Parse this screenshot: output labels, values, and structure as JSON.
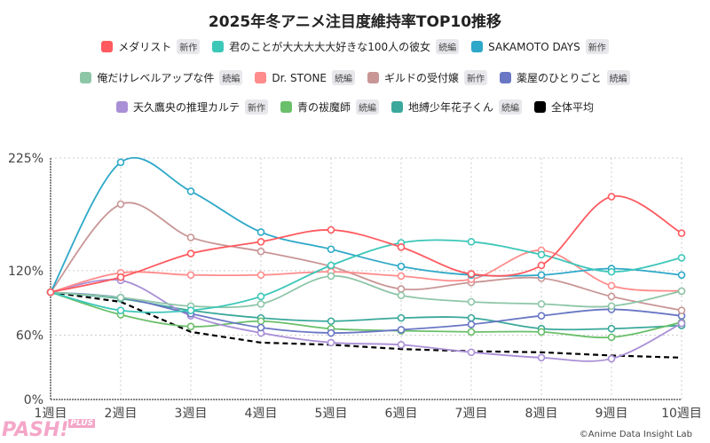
{
  "chart_data": {
    "type": "line",
    "title": "2025年冬アニメ注目度維持率TOP10推移",
    "categories": [
      "1週目",
      "2週目",
      "3週目",
      "4週目",
      "5週目",
      "6週目",
      "7週目",
      "8週目",
      "9週目",
      "10週目"
    ],
    "yticks": [
      "0%",
      "60%",
      "120%",
      "225%"
    ],
    "ytick_values": [
      0,
      60,
      120,
      225
    ],
    "ylim": [
      0,
      225
    ],
    "grid": true,
    "legend_position": "top",
    "series": [
      {
        "name": "メダリスト",
        "badge": "新作",
        "color": "#ff5a5f",
        "values": [
          100,
          114,
          136,
          147,
          158,
          142,
          117,
          125,
          189,
          155
        ]
      },
      {
        "name": "君のことが大大大大大好きな100人の彼女",
        "badge": "続編",
        "color": "#3cc7b9",
        "values": [
          100,
          83,
          83,
          96,
          125,
          146,
          147,
          135,
          119,
          132
        ]
      },
      {
        "name": "SAKAMOTO DAYS",
        "badge": "新作",
        "color": "#2ea8c8",
        "values": [
          100,
          221,
          194,
          156,
          140,
          124,
          116,
          116,
          122,
          116
        ]
      },
      {
        "name": "俺だけレベルアップな件",
        "badge": "続編",
        "color": "#8ec6a8",
        "values": [
          100,
          95,
          87,
          89,
          115,
          97,
          91,
          89,
          87,
          101
        ]
      },
      {
        "name": "Dr.  STONE",
        "badge": "続編",
        "color": "#ff8c8c",
        "values": [
          100,
          118,
          116,
          116,
          119,
          115,
          112,
          139,
          106,
          101
        ]
      },
      {
        "name": "ギルドの受付嬢",
        "badge": "新作",
        "color": "#c99696",
        "values": [
          100,
          182,
          151,
          138,
          124,
          103,
          109,
          113,
          96,
          83
        ]
      },
      {
        "name": "薬屋のひとりごと",
        "badge": "続編",
        "color": "#6a77c4",
        "values": [
          100,
          95,
          80,
          67,
          62,
          65,
          70,
          78,
          84,
          78
        ]
      },
      {
        "name": "天久鷹央の推理カルテ",
        "badge": "新作",
        "color": "#a98fd6",
        "values": [
          100,
          111,
          78,
          62,
          53,
          51,
          44,
          39,
          38,
          71
        ]
      },
      {
        "name": "青の祓魔師",
        "badge": "続編",
        "color": "#6abf6a",
        "values": [
          100,
          79,
          68,
          73,
          66,
          64,
          63,
          63,
          58,
          72
        ]
      },
      {
        "name": "地縛少年花子くん",
        "badge": "続編",
        "color": "#3aa89a",
        "values": [
          100,
          94,
          83,
          76,
          73,
          76,
          76,
          66,
          66,
          69
        ]
      },
      {
        "name": "全体平均",
        "badge": "",
        "color": "#000000",
        "dashed": true,
        "values": [
          100,
          91,
          63,
          53,
          51,
          47,
          45,
          44,
          41,
          39
        ]
      }
    ]
  },
  "credit": "©Anime Data Insight Lab",
  "logo": {
    "text": "PASH!",
    "plus": "PLUS"
  }
}
